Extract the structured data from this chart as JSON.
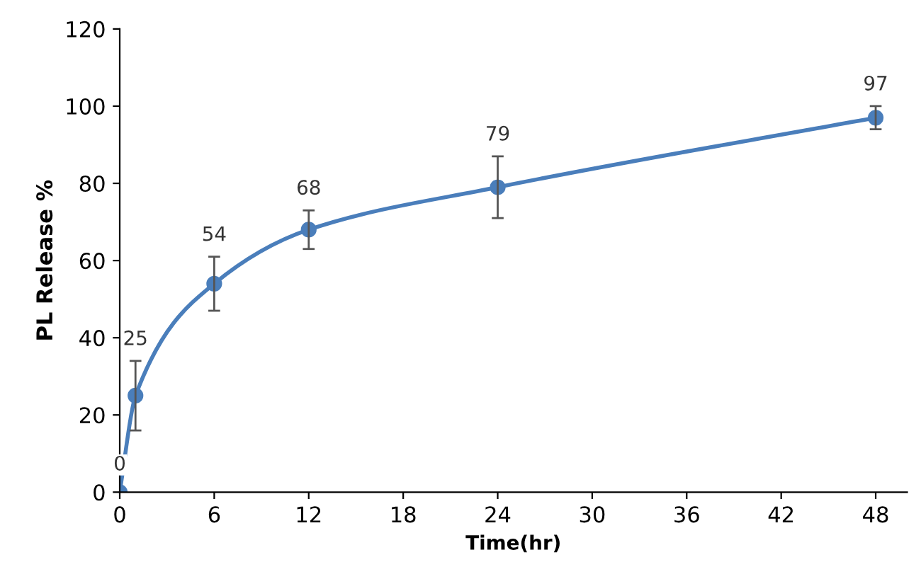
{
  "chart_data": {
    "type": "line",
    "xlabel": "Time(hr)",
    "ylabel": "PL Release %",
    "x": [
      0,
      1,
      6,
      12,
      24,
      48
    ],
    "series": [
      {
        "color": "#4a7ebb",
        "values": [
          0,
          25,
          54,
          68,
          79,
          97
        ],
        "errors": [
          null,
          9,
          7,
          5,
          8,
          3
        ]
      }
    ],
    "xlim": [
      0,
      50
    ],
    "xticks": [
      0,
      6,
      12,
      18,
      24,
      30,
      36,
      42,
      48
    ],
    "ylim": [
      0,
      120
    ],
    "yticks": [
      0,
      20,
      40,
      60,
      80,
      100,
      120
    ],
    "marker": "circle",
    "line_style": "solid",
    "data_labels": true,
    "grid": false
  }
}
